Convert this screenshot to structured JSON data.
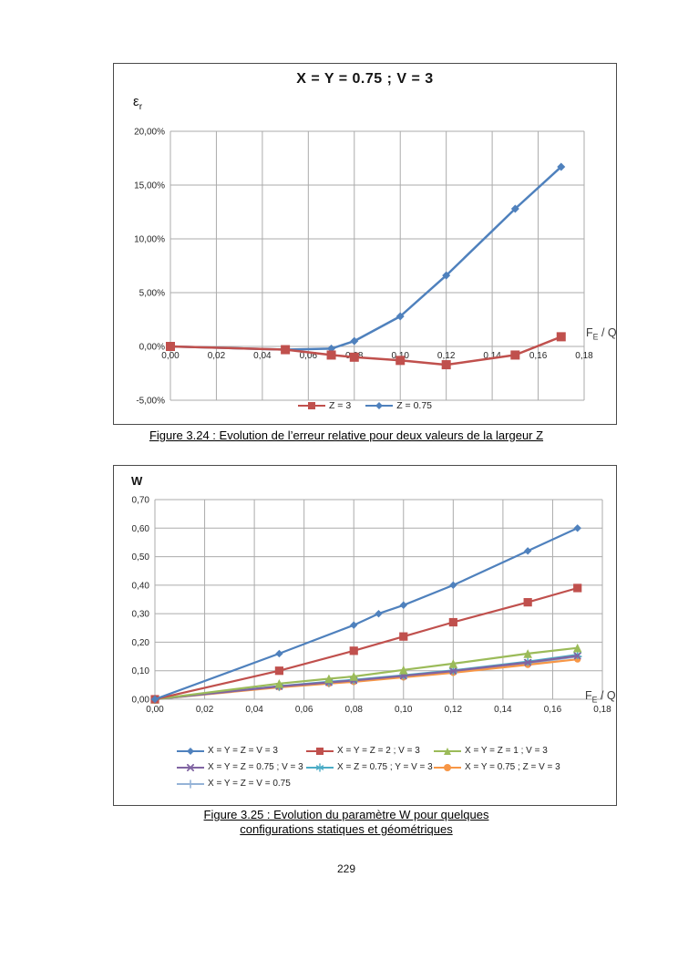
{
  "page": {
    "number": "229"
  },
  "captions": {
    "fig324": "Figure 3.24 : Evolution de l’erreur relative pour deux valeurs de la largeur Z",
    "fig325_line1": "Figure 3.25 : Evolution du paramètre W pour quelques",
    "fig325_line2": "configurations statiques et géométriques"
  },
  "colors": {
    "series_blue": "#4F81BD",
    "series_red": "#C0504D",
    "series_green": "#9BBB59",
    "series_purple": "#8064A2",
    "series_teal": "#4BACC6",
    "series_orange": "#F79646",
    "series_lightblue": "#95B3D7",
    "grid": "#ABABAB",
    "frame": "#4a4a4a"
  },
  "chart_data": [
    {
      "id": "figure-3-24",
      "type": "line",
      "title": "X = Y = 0.75 ; V = 3",
      "ylabel_main": "ε",
      "ylabel_sub": "r",
      "xlabel_main": "F",
      "xlabel_sub": "E",
      "xlabel_rest": " / Q",
      "grid": true,
      "legend_position": "bottom-center",
      "xlim": [
        0,
        0.18
      ],
      "ylim": [
        -5,
        20
      ],
      "x_ticks": [
        "0,00",
        "0,02",
        "0,04",
        "0,06",
        "0,08",
        "0,10",
        "0,12",
        "0,14",
        "0,16",
        "0,18"
      ],
      "y_ticks": [
        "20,00%",
        "15,00%",
        "10,00%",
        "5,00%",
        "0,00%",
        "-5,00%"
      ],
      "y_unit": "percent",
      "series": [
        {
          "name": "Z = 3",
          "color": "#C0504D",
          "marker": "square",
          "x": [
            0.0,
            0.05,
            0.07,
            0.08,
            0.1,
            0.12,
            0.15,
            0.17
          ],
          "y": [
            0.0,
            -0.3,
            -0.8,
            -1.0,
            -1.3,
            -1.7,
            -0.8,
            0.9
          ]
        },
        {
          "name": "Z = 0.75",
          "color": "#4F81BD",
          "marker": "diamond",
          "x": [
            0.0,
            0.05,
            0.07,
            0.08,
            0.1,
            0.12,
            0.15,
            0.17
          ],
          "y": [
            0.0,
            -0.3,
            -0.2,
            0.5,
            2.8,
            6.6,
            12.8,
            16.7
          ]
        }
      ]
    },
    {
      "id": "figure-3-25",
      "type": "line",
      "title": "",
      "ylabel_main": "W",
      "xlabel_main": "F",
      "xlabel_sub": "E",
      "xlabel_rest": " / Q",
      "grid": true,
      "legend_position": "bottom-left",
      "xlim": [
        0,
        0.18
      ],
      "ylim": [
        0,
        0.7
      ],
      "x_ticks": [
        "0,00",
        "0,02",
        "0,04",
        "0,06",
        "0,08",
        "0,10",
        "0,12",
        "0,14",
        "0,16",
        "0,18"
      ],
      "y_ticks": [
        "0,70",
        "0,60",
        "0,50",
        "0,40",
        "0,30",
        "0,20",
        "0,10",
        "0,00"
      ],
      "series": [
        {
          "name": "X = Y = Z = V = 3",
          "color": "#4F81BD",
          "marker": "diamond",
          "x": [
            0,
            0.05,
            0.08,
            0.09,
            0.1,
            0.12,
            0.15,
            0.17
          ],
          "y": [
            0,
            0.16,
            0.26,
            0.3,
            0.33,
            0.4,
            0.52,
            0.6
          ]
        },
        {
          "name": "X = Y = Z = 2 ; V = 3",
          "color": "#C0504D",
          "marker": "square",
          "x": [
            0,
            0.05,
            0.08,
            0.1,
            0.12,
            0.15,
            0.17
          ],
          "y": [
            0,
            0.1,
            0.17,
            0.22,
            0.27,
            0.34,
            0.39
          ]
        },
        {
          "name": "X = Y = Z = 1 ; V = 3",
          "color": "#9BBB59",
          "marker": "triangle",
          "x": [
            0,
            0.05,
            0.07,
            0.08,
            0.1,
            0.12,
            0.15,
            0.17
          ],
          "y": [
            0,
            0.055,
            0.072,
            0.08,
            0.103,
            0.125,
            0.16,
            0.18
          ]
        },
        {
          "name": "X = Y = Z = 0.75 ; V = 3",
          "color": "#8064A2",
          "marker": "x",
          "x": [
            0,
            0.05,
            0.07,
            0.08,
            0.1,
            0.12,
            0.15,
            0.17
          ],
          "y": [
            0,
            0.045,
            0.059,
            0.066,
            0.082,
            0.099,
            0.129,
            0.152
          ]
        },
        {
          "name": "X = Z = 0.75 ; Y = V = 3",
          "color": "#4BACC6",
          "marker": "asterisk",
          "x": [
            0,
            0.05,
            0.07,
            0.08,
            0.1,
            0.12,
            0.15,
            0.17
          ],
          "y": [
            0,
            0.046,
            0.061,
            0.068,
            0.084,
            0.101,
            0.132,
            0.156
          ]
        },
        {
          "name": "X = Y = 0.75 ; Z = V = 3",
          "color": "#F79646",
          "marker": "circle",
          "x": [
            0,
            0.05,
            0.07,
            0.08,
            0.1,
            0.12,
            0.15,
            0.17
          ],
          "y": [
            0,
            0.042,
            0.055,
            0.061,
            0.077,
            0.093,
            0.121,
            0.14
          ]
        },
        {
          "name": "X = Y = Z = V = 0.75",
          "color": "#95B3D7",
          "marker": "plus",
          "x": [
            0,
            0.05,
            0.07,
            0.08,
            0.1,
            0.12,
            0.15,
            0.17
          ],
          "y": [
            0,
            0.044,
            0.057,
            0.064,
            0.08,
            0.097,
            0.126,
            0.15
          ]
        }
      ]
    }
  ]
}
